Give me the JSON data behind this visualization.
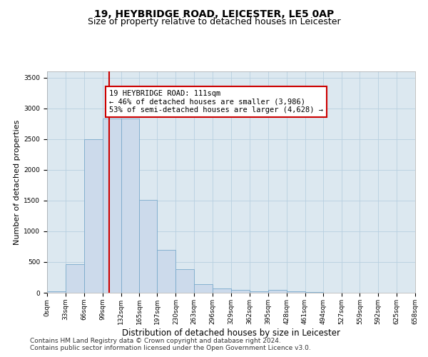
{
  "title1": "19, HEYBRIDGE ROAD, LEICESTER, LE5 0AP",
  "title2": "Size of property relative to detached houses in Leicester",
  "xlabel": "Distribution of detached houses by size in Leicester",
  "ylabel": "Number of detached properties",
  "bar_color": "#ccdaeb",
  "bar_edge_color": "#7aaacb",
  "grid_color": "#b8cfe0",
  "background_color": "#dce8f0",
  "vline_color": "#cc0000",
  "vline_x": 111,
  "annotation_text": "19 HEYBRIDGE ROAD: 111sqm\n← 46% of detached houses are smaller (3,986)\n53% of semi-detached houses are larger (4,628) →",
  "bin_edges": [
    0,
    33,
    66,
    99,
    132,
    165,
    197,
    230,
    263,
    296,
    329,
    362,
    395,
    428,
    461,
    494,
    527,
    559,
    592,
    625,
    658
  ],
  "bin_values": [
    20,
    460,
    2500,
    2830,
    2830,
    1510,
    700,
    380,
    145,
    65,
    45,
    20,
    50,
    20,
    10,
    5,
    5,
    3,
    2,
    1
  ],
  "ylim": [
    0,
    3600
  ],
  "xlim": [
    0,
    658
  ],
  "yticks": [
    0,
    500,
    1000,
    1500,
    2000,
    2500,
    3000,
    3500
  ],
  "xtick_labels": [
    "0sqm",
    "33sqm",
    "66sqm",
    "99sqm",
    "132sqm",
    "165sqm",
    "197sqm",
    "230sqm",
    "263sqm",
    "296sqm",
    "329sqm",
    "362sqm",
    "395sqm",
    "428sqm",
    "461sqm",
    "494sqm",
    "527sqm",
    "559sqm",
    "592sqm",
    "625sqm",
    "658sqm"
  ],
  "footer_line1": "Contains HM Land Registry data © Crown copyright and database right 2024.",
  "footer_line2": "Contains public sector information licensed under the Open Government Licence v3.0.",
  "title1_fontsize": 10,
  "title2_fontsize": 9,
  "xlabel_fontsize": 8.5,
  "ylabel_fontsize": 8,
  "tick_fontsize": 6.5,
  "footer_fontsize": 6.5,
  "annotation_fontsize": 7.5
}
